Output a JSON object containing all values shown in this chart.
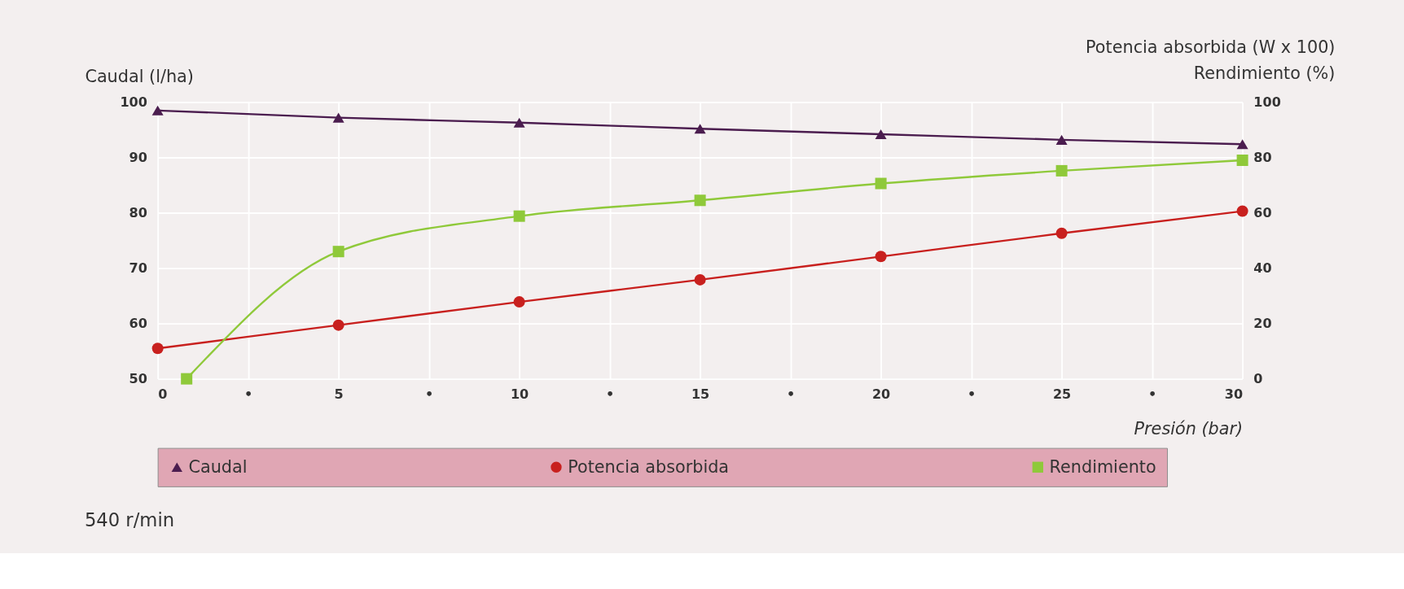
{
  "chart_data": {
    "type": "line",
    "xlabel": "Presión (bar)",
    "ylabel": "Caudal (l/ha)",
    "y2label": "Potencia absorbida (W x 100)\nRendimiento (%)",
    "xlim": [
      0,
      30
    ],
    "xticks": [
      0,
      {
        "value": 2.5,
        "label": "•"
      },
      5,
      {
        "value": 7.5,
        "label": "•"
      },
      10,
      {
        "value": 12.5,
        "label": "•"
      },
      15,
      {
        "value": 17.5,
        "label": "•"
      },
      20,
      {
        "value": 22.5,
        "label": "•"
      },
      25,
      {
        "value": 27.5,
        "label": "•"
      },
      30
    ],
    "ylim": [
      50,
      100
    ],
    "yticks": [
      50,
      60,
      70,
      80,
      90,
      100
    ],
    "y2lim": [
      0,
      100
    ],
    "y2ticks": [
      0,
      20,
      40,
      60,
      80,
      100
    ],
    "grid": true,
    "legend": "bottom",
    "annotations": [
      "540 r/min"
    ],
    "series": [
      {
        "name": "Caudal",
        "color": "#4b1d4f",
        "marker": "triangle",
        "x": [
          0,
          5,
          10,
          15,
          20,
          25,
          30
        ],
        "values": [
          98.5,
          97.2,
          96.3,
          95.2,
          94.2,
          93.2,
          92.4
        ]
      },
      {
        "name": "Potencia absorbida",
        "color": "#c8201e",
        "marker": "circle",
        "axis": "y2",
        "x": [
          0,
          5,
          10,
          15,
          20,
          25,
          30
        ],
        "values": [
          11,
          19.4,
          27.8,
          35.8,
          44.2,
          52.6,
          60.6
        ]
      },
      {
        "name": "Rendimiento",
        "color": "#8fc93a",
        "marker": "square",
        "axis": "y2",
        "x": [
          0.8,
          5,
          10,
          15,
          20,
          25,
          30
        ],
        "values": [
          0,
          46,
          58.8,
          64.5,
          70.6,
          75.2,
          79
        ]
      }
    ]
  }
}
